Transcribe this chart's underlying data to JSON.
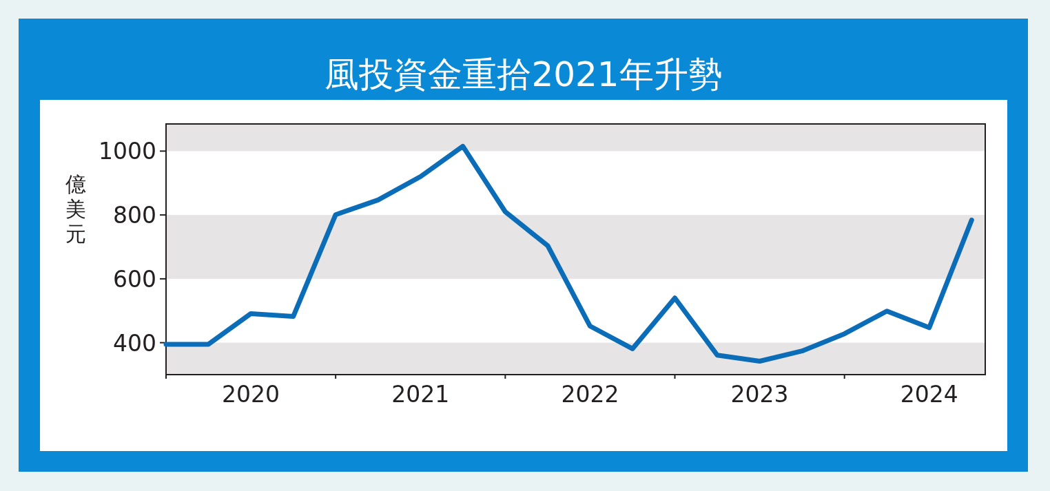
{
  "chart_data": {
    "type": "line",
    "title": "風投資金重拾2021年升勢",
    "ylabel": "億美元",
    "x": [
      2020,
      2020.25,
      2020.5,
      2020.75,
      2021,
      2021.25,
      2021.5,
      2021.75,
      2022,
      2022.25,
      2022.5,
      2022.75,
      2023,
      2023.25,
      2023.5,
      2023.75,
      2024,
      2024.25,
      2024.5,
      2024.75
    ],
    "values": [
      395,
      395,
      491,
      482,
      801,
      847,
      920,
      1015,
      810,
      704,
      452,
      381,
      540,
      361,
      342,
      374,
      428,
      499,
      447,
      784
    ],
    "color": "#0b6cb8",
    "xlim": [
      2020,
      2024.83
    ],
    "ylim": [
      300,
      1085
    ],
    "xticks": [
      {
        "value": 2020,
        "label": null
      },
      {
        "value": 2020.5,
        "label": "2020"
      },
      {
        "value": 2021,
        "label": null
      },
      {
        "value": 2021.5,
        "label": "2021"
      },
      {
        "value": 2022,
        "label": null
      },
      {
        "value": 2022.5,
        "label": "2022"
      },
      {
        "value": 2023,
        "label": null
      },
      {
        "value": 2023.5,
        "label": "2023"
      },
      {
        "value": 2024,
        "label": null
      },
      {
        "value": 2024.5,
        "label": "2024"
      }
    ],
    "yticks": [
      400,
      600,
      800,
      1000
    ],
    "bands": [
      {
        "axis": "y",
        "from": 300,
        "to": 400,
        "color": "#e6e4e5"
      },
      {
        "axis": "y",
        "from": 600,
        "to": 800,
        "color": "#e6e4e5"
      },
      {
        "axis": "y",
        "from": 1000,
        "to": 1085,
        "color": "#e6e4e5"
      }
    ]
  }
}
